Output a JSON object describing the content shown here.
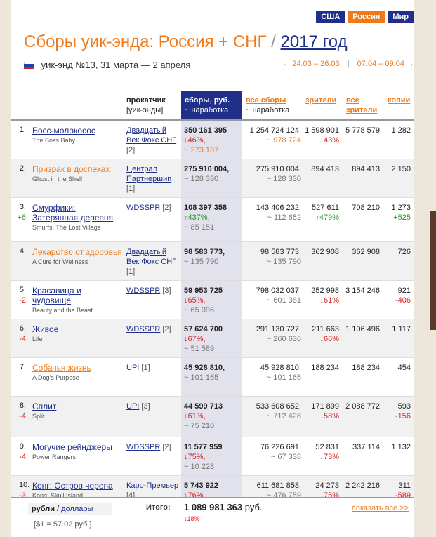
{
  "tabs": [
    "США",
    "Россия",
    "Мир"
  ],
  "title": {
    "main": "Сборы уик-энда: Россия + СНГ",
    "sep": "/",
    "year": "2017 год"
  },
  "subtitle": "уик-энд №13, 31 марта — 2 апреля",
  "nav": {
    "prev": "← 24.03 – 26.03",
    "next": "07.04 – 09.04 →",
    "sep": "|"
  },
  "headers": {
    "dist": "прокатчик",
    "dist_sub": "[уик-энды]",
    "gross": "сборы, руб.",
    "gross_sub": "~ наработка",
    "total": "все сборы",
    "total_sub": "~ наработка",
    "adm": "зрители",
    "adm2a": "все",
    "adm2b": "зрители",
    "cop": "копии"
  },
  "rows": [
    {
      "num": "1.",
      "chg": "",
      "title": "Босс-молокосос",
      "orig": "The Boss Baby",
      "dist1": "Двадцатый",
      "dist2": "Век Фокс СНГ",
      "wk": "[2]",
      "gross": "350 161 395",
      "gpct": "↓46%,",
      "gavg": "~ 273 137",
      "gavg_orange": true,
      "total": "1 254 724 124,",
      "tavg": "~ 978 724",
      "tavg_orange": true,
      "adm": "1 598 901",
      "apct": "↓43%",
      "adm2": "5 778 579",
      "cop": "1 282",
      "copchg": ""
    },
    {
      "num": "2.",
      "chg": "",
      "title": "Призрак в доспехах",
      "orig": "Ghost in the Shell",
      "dist1": "Централ",
      "dist2": "Партнершип",
      "wk": "[1]",
      "gross": "275 910 004,",
      "gpct": "",
      "gavg": "~ 128 330",
      "gavg_orange": false,
      "total": "275 910 004,",
      "tavg": "~ 128 330",
      "tavg_orange": false,
      "adm": "894 413",
      "apct": "",
      "adm2": "894 413",
      "cop": "2 150",
      "copchg": ""
    },
    {
      "num": "3.",
      "chg": "+6",
      "title": "Смурфики: Затерянная деревня",
      "orig": "Smurfs: The Lost Village",
      "dist1": "WDSSPR",
      "dist2": "",
      "wk": "[2]",
      "gross": "108 397 358",
      "gpct": "↑437%,",
      "gavg": "~ 85 151",
      "gavg_orange": false,
      "total": "143 406 232,",
      "tavg": "~ 112 652",
      "tavg_orange": false,
      "adm": "527 611",
      "apct": "↑479%",
      "adm2": "708 210",
      "cop": "1 273",
      "copchg": "+525"
    },
    {
      "num": "4.",
      "chg": "",
      "title": "Лекарство от здоровья",
      "orig": "A Cure for Wellness",
      "dist1": "Двадцатый",
      "dist2": "Век Фокс СНГ",
      "wk": "[1]",
      "gross": "98 583 773,",
      "gpct": "",
      "gavg": "~ 135 790",
      "gavg_orange": false,
      "total": "98 583 773,",
      "tavg": "~ 135 790",
      "tavg_orange": false,
      "adm": "362 908",
      "apct": "",
      "adm2": "362 908",
      "cop": "726",
      "copchg": ""
    },
    {
      "num": "5.",
      "chg": "-2",
      "title": "Красавица и чудовище",
      "orig": "Beauty and the Beast",
      "dist1": "WDSSPR",
      "dist2": "",
      "wk": "[3]",
      "gross": "59 953 725",
      "gpct": "↓65%,",
      "gavg": "~ 65 096",
      "gavg_orange": false,
      "total": "798 032 037,",
      "tavg": "~ 601 381",
      "tavg_orange": false,
      "adm": "252 998",
      "apct": "↓61%",
      "adm2": "3 154 246",
      "cop": "921",
      "copchg": "-406"
    },
    {
      "num": "6.",
      "chg": "-4",
      "title": "Живое",
      "orig": "Life",
      "dist1": "WDSSPR",
      "dist2": "",
      "wk": "[2]",
      "gross": "57 624 700",
      "gpct": "↓67%,",
      "gavg": "~ 51 589",
      "gavg_orange": false,
      "total": "291 130 727,",
      "tavg": "~ 260 636",
      "tavg_orange": false,
      "adm": "211 663",
      "apct": "↓66%",
      "adm2": "1 106 496",
      "cop": "1 117",
      "copchg": ""
    },
    {
      "num": "7.",
      "chg": "",
      "title": "Собачья жизнь",
      "orig": "A Dog's Purpose",
      "dist1": "UPI",
      "dist2": "",
      "wk": "[1]",
      "gross": "45 928 810,",
      "gpct": "",
      "gavg": "~ 101 165",
      "gavg_orange": false,
      "total": "45 928 810,",
      "tavg": "~ 101 165",
      "tavg_orange": false,
      "adm": "188 234",
      "apct": "",
      "adm2": "188 234",
      "cop": "454",
      "copchg": ""
    },
    {
      "num": "8.",
      "chg": "-4",
      "title": "Сплит",
      "orig": "Split",
      "dist1": "UPI",
      "dist2": "",
      "wk": "[3]",
      "gross": "44 599 713",
      "gpct": "↓61%,",
      "gavg": "~ 75 210",
      "gavg_orange": false,
      "total": "533 608 652,",
      "tavg": "~ 712 428",
      "tavg_orange": false,
      "adm": "171 899",
      "apct": "↓58%",
      "adm2": "2 088 772",
      "cop": "593",
      "copchg": "-156"
    },
    {
      "num": "9.",
      "chg": "-4",
      "title": "Могучие рейнджеры",
      "orig": "Power Rangers",
      "dist1": "WDSSPR",
      "dist2": "",
      "wk": "[2]",
      "gross": "11 577 959",
      "gpct": "↓75%,",
      "gavg": "~ 10 228",
      "gavg_orange": false,
      "total": "76 226 691,",
      "tavg": "~ 67 338",
      "tavg_orange": false,
      "adm": "52 831",
      "apct": "↓73%",
      "adm2": "337 114",
      "cop": "1 132",
      "copchg": ""
    },
    {
      "num": "10.",
      "chg": "-3",
      "title": "Конг: Остров черепа",
      "orig": "Kong: Skull Island",
      "dist1": "Каро-Премьер",
      "dist2": "",
      "wk": "[4]",
      "gross": "5 743 922",
      "gpct": "↓76%,",
      "gavg": "~ 18 469",
      "gavg_orange": false,
      "total": "611 681 858,",
      "tavg": "~ 476 759",
      "tavg_orange": false,
      "adm": "24 273",
      "apct": "↓75%",
      "adm2": "2 242 216",
      "cop": "311",
      "copchg": "-589"
    }
  ],
  "footer": {
    "rub": "рубли",
    "slash": "/",
    "usd": "доллары",
    "rate": "[$1 = 57.02 руб.]",
    "total_label": "Итого:",
    "total_value": "1 089 981 363",
    "total_unit": " руб.",
    "total_pct": "↓18%",
    "show_all": "показать все >>"
  }
}
